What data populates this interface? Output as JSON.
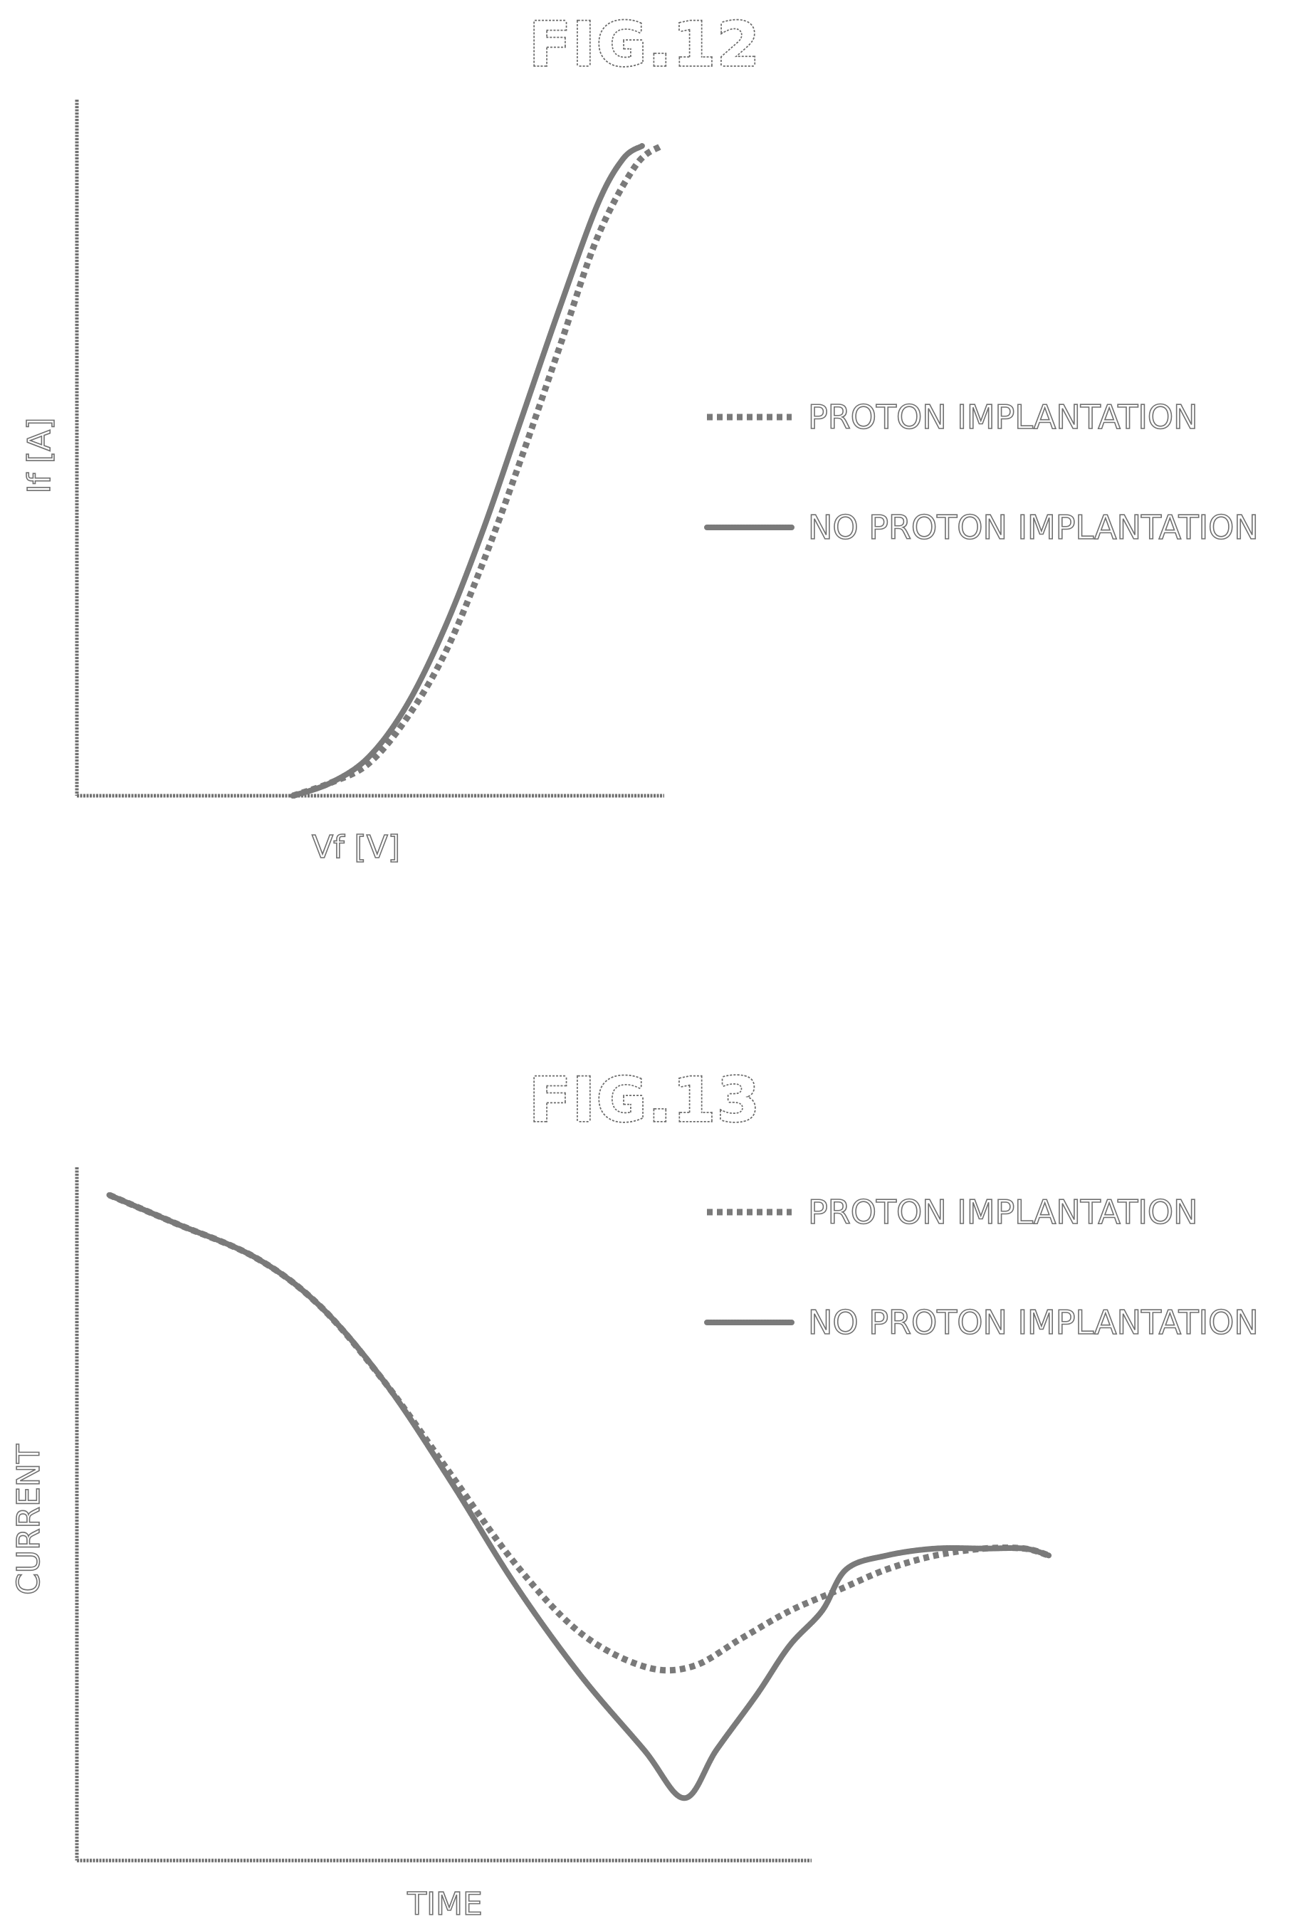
{
  "figures": [
    {
      "title": "FIG.12"
    },
    {
      "title": "FIG.13"
    }
  ],
  "chart_data": [
    {
      "type": "line",
      "title": "FIG.12",
      "xlabel": "Vf [V]",
      "ylabel": "If [A]",
      "xlim": [
        0,
        1
      ],
      "ylim": [
        0,
        1
      ],
      "grid": false,
      "legend_position": "right",
      "series": [
        {
          "name": "PROTON IMPLANTATION",
          "style": "dotted",
          "x": [
            0.34,
            0.4,
            0.46,
            0.52,
            0.58,
            0.64,
            0.7,
            0.76,
            0.82,
            0.88,
            0.92
          ],
          "y": [
            0.0,
            0.02,
            0.05,
            0.12,
            0.22,
            0.36,
            0.52,
            0.69,
            0.86,
            0.97,
            1.0
          ]
        },
        {
          "name": "NO PROTON IMPLANTATION",
          "style": "solid",
          "x": [
            0.34,
            0.4,
            0.46,
            0.52,
            0.58,
            0.64,
            0.7,
            0.76,
            0.82,
            0.86,
            0.89
          ],
          "y": [
            0.0,
            0.02,
            0.06,
            0.14,
            0.26,
            0.41,
            0.58,
            0.75,
            0.91,
            0.98,
            1.0
          ]
        }
      ]
    },
    {
      "type": "line",
      "title": "FIG.13",
      "xlabel": "TIME",
      "ylabel": "CURRENT",
      "xlim": [
        0,
        1.25
      ],
      "ylim": [
        0,
        1
      ],
      "grid": false,
      "legend_position": "top-right",
      "series": [
        {
          "name": "PROTON IMPLANTATION",
          "style": "dotted",
          "x": [
            0.04,
            0.12,
            0.22,
            0.3,
            0.38,
            0.46,
            0.54,
            0.62,
            0.7,
            0.76,
            0.82,
            0.88,
            0.94,
            1.0,
            1.06,
            1.12,
            1.17,
            1.2
          ],
          "y": [
            0.96,
            0.92,
            0.87,
            0.8,
            0.69,
            0.56,
            0.43,
            0.33,
            0.28,
            0.28,
            0.32,
            0.36,
            0.39,
            0.42,
            0.44,
            0.45,
            0.45,
            0.44
          ]
        },
        {
          "name": "NO PROTON IMPLANTATION",
          "style": "solid",
          "x": [
            0.04,
            0.12,
            0.22,
            0.3,
            0.38,
            0.46,
            0.54,
            0.62,
            0.7,
            0.75,
            0.79,
            0.84,
            0.88,
            0.92,
            0.95,
            1.0,
            1.06,
            1.12,
            1.17,
            1.2
          ],
          "y": [
            0.96,
            0.92,
            0.87,
            0.8,
            0.69,
            0.55,
            0.4,
            0.27,
            0.16,
            0.09,
            0.16,
            0.24,
            0.31,
            0.36,
            0.42,
            0.44,
            0.45,
            0.45,
            0.45,
            0.44
          ]
        }
      ]
    }
  ]
}
